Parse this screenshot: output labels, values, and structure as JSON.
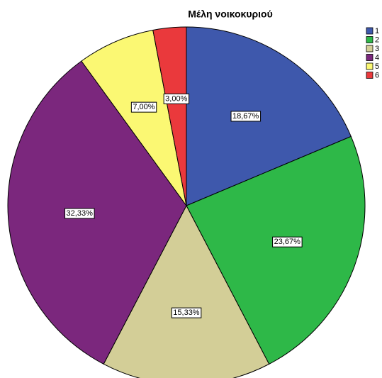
{
  "chart_data": {
    "type": "pie",
    "title": "Μέλη νοικοκυριού",
    "categories": [
      "1",
      "2",
      "3",
      "4",
      "5",
      "6"
    ],
    "values": [
      18.67,
      23.67,
      15.33,
      32.33,
      7.0,
      3.0
    ],
    "value_labels": [
      "18,67%",
      "23,67%",
      "15,33%",
      "32,33%",
      "7,00%",
      "3,00%"
    ],
    "colors": [
      "#3e58ac",
      "#2eb848",
      "#d3ce97",
      "#7b277d",
      "#fbf873",
      "#ea393c"
    ],
    "legend": "top-right"
  }
}
